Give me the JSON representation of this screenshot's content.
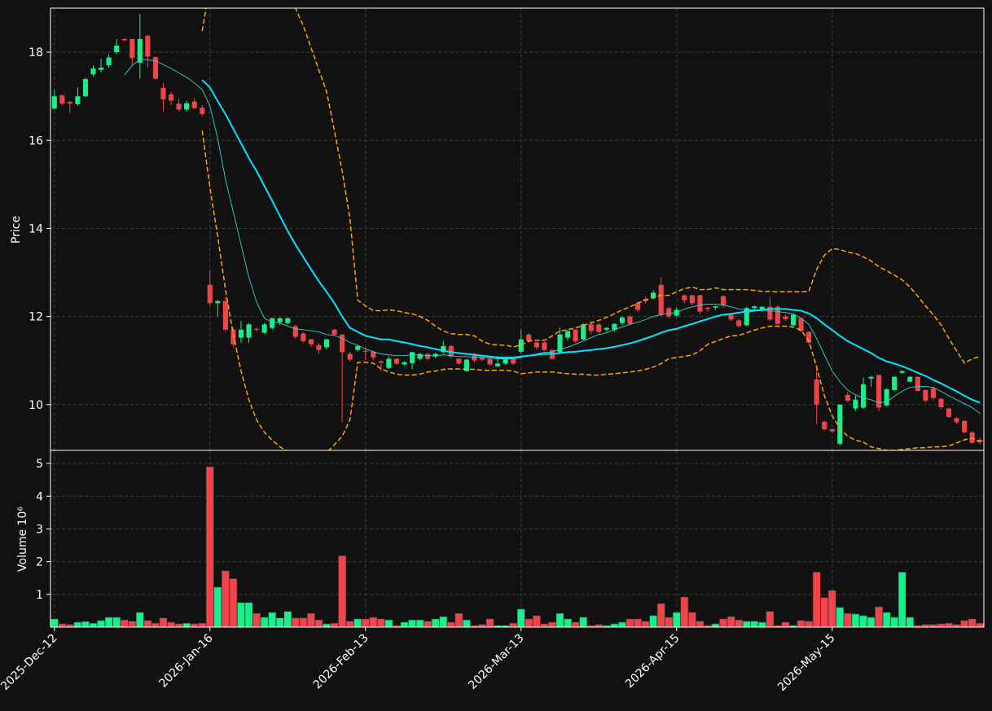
{
  "chart_data": {
    "type": "candlestick",
    "ylabel": "Price",
    "volume_ylabel": "Volume  10⁶",
    "up_color": "#14f08a",
    "down_color": "#f0444a",
    "grid": true,
    "categories": [
      "2025-Dec-12",
      null,
      null,
      null,
      null,
      null,
      null,
      null,
      null,
      null,
      null,
      null,
      null,
      null,
      null,
      null,
      null,
      null,
      null,
      null,
      "2026-Jan-16",
      null,
      null,
      null,
      null,
      null,
      null,
      null,
      null,
      null,
      null,
      null,
      null,
      null,
      null,
      null,
      null,
      null,
      null,
      null,
      "2026-Feb-13",
      null,
      null,
      null,
      null,
      null,
      null,
      null,
      null,
      null,
      null,
      null,
      null,
      null,
      null,
      null,
      null,
      null,
      null,
      null,
      "2026-Mar-13",
      null,
      null,
      null,
      null,
      null,
      null,
      null,
      null,
      null,
      null,
      null,
      null,
      null,
      null,
      null,
      null,
      null,
      null,
      null,
      "2026-Apr-15",
      null,
      null,
      null,
      null,
      null,
      null,
      null,
      null,
      null,
      null,
      null,
      null,
      null,
      null,
      null,
      null,
      null,
      null,
      null,
      "2026-May-15",
      null,
      null,
      null,
      null,
      null,
      null,
      null,
      null,
      null,
      null,
      null,
      null,
      null,
      null,
      null,
      null,
      null,
      null,
      null
    ],
    "open": [
      16.72,
      17.02,
      16.87,
      16.82,
      17.0,
      17.5,
      17.6,
      17.7,
      18.0,
      18.3,
      18.3,
      17.76,
      18.37,
      17.89,
      17.19,
      17.04,
      16.83,
      16.7,
      16.88,
      16.74,
      12.72,
      12.3,
      12.35,
      11.7,
      11.52,
      11.52,
      11.72,
      11.63,
      11.74,
      11.87,
      11.85,
      11.78,
      11.61,
      11.48,
      11.35,
      11.3,
      11.7,
      11.59,
      11.15,
      11.24,
      11.22,
      11.2,
      10.98,
      10.83,
      11.04,
      10.91,
      10.94,
      11.04,
      11.15,
      11.09,
      11.19,
      11.33,
      11.04,
      10.76,
      11.15,
      11.06,
      11.04,
      10.87,
      10.93,
      11.04,
      11.2,
      11.59,
      11.41,
      11.41,
      11.24,
      11.19,
      11.52,
      11.7,
      11.48,
      11.82,
      11.82,
      11.7,
      11.7,
      11.85,
      12.0,
      12.3,
      12.4,
      12.41,
      12.72,
      12.19,
      12.02,
      12.48,
      12.48,
      12.48,
      12.2,
      12.2,
      12.46,
      12.04,
      11.91,
      11.8,
      12.19,
      12.15,
      12.22,
      12.22,
      12.0,
      11.8,
      11.96,
      11.65,
      10.57,
      9.61,
      9.44,
      9.11,
      10.22,
      9.91,
      9.93,
      10.59,
      10.67,
      9.98,
      10.33,
      10.72,
      10.52,
      10.63,
      10.33,
      10.37,
      10.13,
      9.91,
      9.69,
      9.63,
      9.37,
      9.2
    ],
    "high": [
      17.15,
      17.03,
      16.9,
      17.2,
      17.42,
      17.7,
      17.85,
      17.95,
      18.3,
      18.32,
      18.3,
      18.87,
      18.4,
      17.9,
      17.3,
      17.1,
      16.95,
      16.9,
      16.95,
      16.8,
      13.05,
      12.38,
      12.45,
      11.75,
      11.9,
      11.85,
      11.75,
      11.85,
      11.98,
      11.98,
      11.98,
      11.82,
      11.65,
      11.5,
      11.4,
      11.5,
      11.72,
      11.6,
      11.2,
      11.35,
      11.3,
      11.22,
      11.0,
      11.1,
      11.05,
      10.98,
      11.2,
      11.17,
      11.17,
      11.17,
      11.45,
      11.35,
      11.05,
      11.04,
      11.18,
      11.1,
      11.06,
      11.1,
      11.06,
      11.06,
      11.7,
      11.62,
      11.43,
      11.43,
      11.26,
      11.75,
      11.7,
      11.72,
      11.85,
      11.9,
      11.85,
      11.76,
      11.85,
      12.0,
      12.05,
      12.35,
      12.45,
      12.6,
      12.9,
      12.22,
      12.2,
      12.5,
      12.5,
      12.5,
      12.22,
      12.25,
      12.48,
      12.06,
      11.95,
      12.22,
      12.25,
      12.24,
      12.45,
      12.25,
      12.05,
      12.06,
      11.98,
      11.67,
      10.9,
      9.65,
      9.46,
      10.0,
      10.3,
      10.2,
      10.62,
      10.65,
      10.68,
      10.37,
      10.65,
      10.78,
      10.65,
      10.65,
      10.35,
      10.4,
      10.15,
      9.93,
      9.72,
      9.65,
      9.4,
      9.25
    ],
    "low": [
      16.7,
      16.8,
      16.62,
      16.78,
      16.98,
      17.45,
      17.55,
      17.65,
      17.95,
      18.25,
      17.7,
      17.4,
      17.65,
      17.38,
      16.65,
      16.8,
      16.65,
      16.65,
      16.7,
      16.55,
      12.25,
      12.0,
      11.65,
      11.3,
      11.4,
      11.4,
      11.65,
      11.6,
      11.7,
      11.8,
      11.82,
      11.5,
      11.4,
      11.3,
      11.15,
      11.25,
      11.55,
      9.6,
      10.98,
      11.2,
      11.0,
      11.0,
      10.75,
      10.8,
      10.9,
      10.88,
      10.8,
      11.0,
      11.0,
      11.05,
      11.15,
      11.05,
      10.9,
      10.74,
      10.95,
      10.98,
      10.88,
      10.85,
      10.9,
      10.9,
      11.15,
      11.4,
      11.25,
      11.22,
      11.0,
      11.15,
      11.45,
      11.4,
      11.45,
      11.6,
      11.6,
      11.65,
      11.65,
      11.8,
      11.8,
      12.1,
      12.3,
      12.38,
      12.0,
      11.95,
      11.98,
      12.3,
      12.25,
      12.05,
      12.1,
      12.15,
      12.2,
      11.9,
      11.75,
      11.78,
      12.15,
      12.1,
      11.9,
      11.8,
      11.9,
      11.78,
      11.65,
      11.35,
      9.55,
      9.4,
      9.35,
      9.07,
      10.05,
      9.85,
      9.9,
      10.4,
      9.85,
      9.95,
      10.3,
      10.7,
      10.5,
      10.3,
      10.05,
      10.1,
      9.9,
      9.7,
      9.55,
      9.35,
      9.1,
      9.1
    ],
    "close": [
      17.0,
      16.83,
      16.83,
      17.0,
      17.39,
      17.63,
      17.65,
      17.88,
      18.15,
      18.27,
      17.87,
      18.3,
      17.9,
      17.4,
      16.93,
      16.9,
      16.7,
      16.84,
      16.73,
      16.6,
      12.3,
      12.35,
      11.7,
      11.37,
      11.7,
      11.82,
      11.7,
      11.82,
      11.96,
      11.96,
      11.96,
      11.54,
      11.44,
      11.37,
      11.24,
      11.48,
      11.59,
      11.19,
      11.02,
      11.33,
      11.2,
      11.07,
      10.95,
      11.04,
      10.93,
      10.96,
      11.19,
      11.15,
      11.04,
      11.15,
      11.33,
      11.09,
      10.93,
      11.02,
      11.0,
      11.02,
      10.91,
      10.93,
      11.04,
      10.93,
      11.48,
      11.44,
      11.3,
      11.24,
      11.04,
      11.59,
      11.67,
      11.44,
      11.82,
      11.67,
      11.65,
      11.74,
      11.83,
      11.98,
      11.83,
      12.15,
      12.35,
      12.54,
      12.04,
      12.0,
      12.15,
      12.37,
      12.3,
      12.11,
      12.17,
      12.23,
      12.26,
      11.93,
      11.78,
      12.19,
      12.23,
      12.22,
      11.93,
      11.83,
      11.94,
      12.04,
      11.67,
      11.41,
      10.0,
      9.44,
      9.39,
      10.0,
      10.09,
      10.11,
      10.46,
      10.63,
      9.93,
      10.35,
      10.63,
      10.76,
      10.63,
      10.31,
      10.09,
      10.15,
      9.94,
      9.72,
      9.6,
      9.37,
      9.13,
      9.15
    ],
    "volume": [
      0.25,
      0.1,
      0.08,
      0.15,
      0.17,
      0.12,
      0.2,
      0.3,
      0.3,
      0.22,
      0.18,
      0.45,
      0.2,
      0.12,
      0.28,
      0.15,
      0.1,
      0.12,
      0.1,
      0.12,
      4.9,
      1.22,
      1.72,
      1.48,
      0.75,
      0.75,
      0.42,
      0.3,
      0.45,
      0.28,
      0.48,
      0.28,
      0.28,
      0.42,
      0.22,
      0.1,
      0.12,
      2.18,
      0.18,
      0.25,
      0.25,
      0.3,
      0.25,
      0.22,
      0.05,
      0.15,
      0.22,
      0.22,
      0.18,
      0.25,
      0.32,
      0.15,
      0.42,
      0.22,
      0.05,
      0.08,
      0.25,
      0.05,
      0.05,
      0.12,
      0.55,
      0.25,
      0.35,
      0.1,
      0.15,
      0.42,
      0.25,
      0.15,
      0.3,
      0.05,
      0.08,
      0.05,
      0.1,
      0.15,
      0.25,
      0.25,
      0.18,
      0.35,
      0.72,
      0.3,
      0.45,
      0.92,
      0.45,
      0.18,
      0.05,
      0.1,
      0.25,
      0.32,
      0.22,
      0.18,
      0.18,
      0.15,
      0.48,
      0.05,
      0.15,
      0.05,
      0.2,
      0.18,
      1.68,
      0.9,
      1.12,
      0.6,
      0.42,
      0.4,
      0.35,
      0.3,
      0.62,
      0.45,
      0.3,
      1.68,
      0.3,
      0.05,
      0.08,
      0.08,
      0.1,
      0.12,
      0.08,
      0.2,
      0.25,
      0.12
    ],
    "overlays": [
      {
        "color": "#33d6cc",
        "linestyle": "solid",
        "values": [
          null,
          null,
          null,
          null,
          null,
          null,
          null,
          null,
          null,
          17.48,
          17.7,
          17.83,
          17.83,
          17.8,
          17.72,
          17.63,
          17.53,
          17.43,
          17.3,
          17.15,
          16.78,
          16.04,
          15.11,
          14.37,
          13.63,
          12.89,
          12.33,
          11.96,
          11.87,
          11.85,
          11.78,
          11.72,
          11.7,
          11.68,
          11.65,
          11.59,
          11.57,
          11.5,
          11.41,
          11.35,
          11.26,
          11.2,
          11.15,
          11.13,
          11.11,
          11.11,
          11.13,
          11.13,
          11.11,
          11.11,
          11.13,
          11.11,
          11.09,
          11.09,
          11.07,
          11.07,
          11.06,
          11.04,
          11.04,
          11.04,
          11.07,
          11.11,
          11.15,
          11.19,
          11.19,
          11.26,
          11.3,
          11.37,
          11.44,
          11.52,
          11.59,
          11.63,
          11.7,
          11.76,
          11.82,
          11.87,
          11.93,
          12.0,
          12.04,
          12.07,
          12.09,
          12.17,
          12.22,
          12.26,
          12.28,
          12.28,
          12.26,
          12.22,
          12.17,
          12.15,
          12.15,
          12.15,
          12.13,
          12.11,
          12.09,
          12.06,
          11.96,
          11.82,
          11.5,
          11.13,
          10.76,
          10.52,
          10.33,
          10.22,
          10.15,
          10.11,
          10.04,
          10.06,
          10.19,
          10.3,
          10.39,
          10.41,
          10.41,
          10.39,
          10.3,
          10.2,
          10.11,
          10.02,
          9.93,
          9.8
        ]
      },
      {
        "color": "#00e5ff",
        "linestyle": "solid",
        "values": [
          null,
          null,
          null,
          null,
          null,
          null,
          null,
          null,
          null,
          null,
          null,
          null,
          null,
          null,
          null,
          null,
          null,
          null,
          null,
          17.37,
          17.2,
          16.89,
          16.59,
          16.26,
          15.93,
          15.6,
          15.3,
          14.96,
          14.63,
          14.28,
          13.94,
          13.63,
          13.35,
          13.07,
          12.8,
          12.56,
          12.3,
          12.0,
          11.74,
          11.65,
          11.56,
          11.52,
          11.48,
          11.48,
          11.44,
          11.41,
          11.37,
          11.33,
          11.3,
          11.26,
          11.22,
          11.19,
          11.17,
          11.15,
          11.13,
          11.11,
          11.09,
          11.07,
          11.07,
          11.07,
          11.09,
          11.11,
          11.13,
          11.15,
          11.15,
          11.17,
          11.19,
          11.2,
          11.22,
          11.24,
          11.26,
          11.28,
          11.31,
          11.35,
          11.39,
          11.44,
          11.5,
          11.56,
          11.63,
          11.69,
          11.72,
          11.78,
          11.83,
          11.89,
          11.94,
          12.0,
          12.04,
          12.06,
          12.09,
          12.11,
          12.13,
          12.15,
          12.17,
          12.17,
          12.17,
          12.15,
          12.13,
          12.07,
          11.96,
          11.82,
          11.69,
          11.56,
          11.44,
          11.35,
          11.26,
          11.17,
          11.06,
          10.98,
          10.93,
          10.87,
          10.8,
          10.72,
          10.65,
          10.56,
          10.48,
          10.39,
          10.3,
          10.2,
          10.11,
          10.04
        ]
      },
      {
        "color": "#ffa500",
        "linestyle": "dashed",
        "values": [
          null,
          null,
          null,
          null,
          null,
          null,
          null,
          null,
          null,
          null,
          null,
          null,
          null,
          null,
          null,
          null,
          null,
          null,
          null,
          18.48,
          19.5,
          20.0,
          20.4,
          20.6,
          20.7,
          20.7,
          20.6,
          20.4,
          20.1,
          19.8,
          19.4,
          19.0,
          18.6,
          18.1,
          17.6,
          17.1,
          16.22,
          15.3,
          14.22,
          12.37,
          12.24,
          12.13,
          12.13,
          12.15,
          12.13,
          12.09,
          12.06,
          12.0,
          11.91,
          11.78,
          11.67,
          11.61,
          11.59,
          11.59,
          11.56,
          11.44,
          11.37,
          11.35,
          11.35,
          11.31,
          11.35,
          11.44,
          11.46,
          11.46,
          11.56,
          11.67,
          11.7,
          11.74,
          11.8,
          11.85,
          11.91,
          11.98,
          12.06,
          12.15,
          12.22,
          12.3,
          12.37,
          12.44,
          12.48,
          12.48,
          12.56,
          12.63,
          12.67,
          12.61,
          12.61,
          12.65,
          12.61,
          12.61,
          12.61,
          12.61,
          12.59,
          12.57,
          12.57,
          12.56,
          12.56,
          12.56,
          12.56,
          12.57,
          13.07,
          13.39,
          13.54,
          13.52,
          13.46,
          13.43,
          13.35,
          13.26,
          13.13,
          13.04,
          12.94,
          12.83,
          12.67,
          12.46,
          12.24,
          12.04,
          11.81,
          11.5,
          11.22,
          10.94,
          11.04,
          11.09
        ]
      },
      {
        "color": "#ffa500",
        "linestyle": "dashed",
        "values": [
          null,
          null,
          null,
          null,
          null,
          null,
          null,
          null,
          null,
          null,
          null,
          null,
          null,
          null,
          null,
          null,
          null,
          null,
          null,
          16.22,
          14.93,
          13.81,
          12.61,
          11.59,
          10.76,
          10.11,
          9.65,
          9.37,
          9.19,
          9.04,
          8.94,
          8.89,
          8.87,
          8.89,
          8.89,
          8.91,
          9.09,
          9.28,
          9.65,
          10.96,
          10.96,
          10.94,
          10.81,
          10.74,
          10.69,
          10.67,
          10.67,
          10.69,
          10.74,
          10.76,
          10.8,
          10.81,
          10.81,
          10.8,
          10.8,
          10.78,
          10.78,
          10.78,
          10.78,
          10.76,
          10.7,
          10.72,
          10.74,
          10.74,
          10.74,
          10.72,
          10.7,
          10.69,
          10.69,
          10.67,
          10.67,
          10.69,
          10.7,
          10.72,
          10.74,
          10.76,
          10.8,
          10.85,
          10.93,
          11.04,
          11.07,
          11.09,
          11.13,
          11.22,
          11.37,
          11.43,
          11.5,
          11.56,
          11.57,
          11.63,
          11.69,
          11.74,
          11.78,
          11.78,
          11.78,
          11.76,
          11.69,
          11.44,
          10.85,
          10.2,
          9.74,
          9.46,
          9.28,
          9.19,
          9.15,
          9.04,
          9.0,
          8.96,
          8.96,
          8.98,
          9.0,
          9.02,
          9.02,
          9.04,
          9.04,
          9.06,
          9.13,
          9.2,
          9.24,
          9.15
        ]
      }
    ],
    "ylim": [
      8.96,
      19.0
    ],
    "yticks": [
      10,
      12,
      14,
      16,
      18
    ],
    "volume_ylim": [
      0,
      5.4
    ],
    "volume_yticks": [
      1,
      2,
      3,
      4,
      5
    ]
  }
}
